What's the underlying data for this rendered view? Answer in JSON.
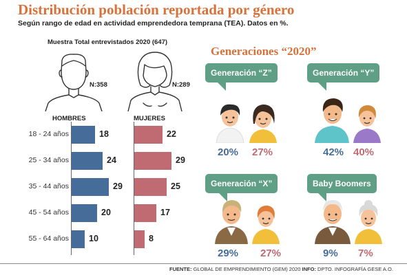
{
  "title": "Distribución población reportada por género",
  "subtitle": "Según rango de edad en actividad emprendedora temprana (TEA). Datos en %.",
  "sample_label": "Muestra Total entrevistados 2020 (647)",
  "icons": {
    "male": "man-outline-icon",
    "female": "woman-outline-icon"
  },
  "colors": {
    "title": "#d9713a",
    "male": "#466d99",
    "female": "#c06a72",
    "bubble": "#5f9f85"
  },
  "chart_data": [
    {
      "type": "bar",
      "orientation": "horizontal",
      "categories": [
        "18 - 24 años",
        "25 - 34 años",
        "35 - 44 años",
        "45 - 54 años",
        "55 - 64 años"
      ],
      "series": [
        {
          "name": "HOMBRES",
          "n_label": "N:358",
          "values": [
            18,
            24,
            29,
            20,
            10
          ]
        },
        {
          "name": "MUJERES",
          "n_label": "N:289",
          "values": [
            22,
            29,
            25,
            17,
            8
          ]
        }
      ],
      "xlim": [
        0,
        29
      ]
    },
    {
      "type": "table",
      "title": "Generaciones “2020”",
      "groups": [
        {
          "label": "Generación “Z”",
          "male": "20%",
          "female": "27%"
        },
        {
          "label": "Generación “Y”",
          "male": "42%",
          "female": "40%"
        },
        {
          "label": "Generación “X”",
          "male": "29%",
          "female": "27%"
        },
        {
          "label": "Baby Boomers",
          "male": "9%",
          "female": "7%"
        }
      ]
    }
  ],
  "footer": {
    "fuente_label": "FUENTE:",
    "fuente_text": " GLOBAL DE EMPRENDIMIENTO (GEM) 2020 ",
    "info_label": "INFO:",
    "info_text": " DPTO. INFOGRAFÍA GESE A.O."
  }
}
